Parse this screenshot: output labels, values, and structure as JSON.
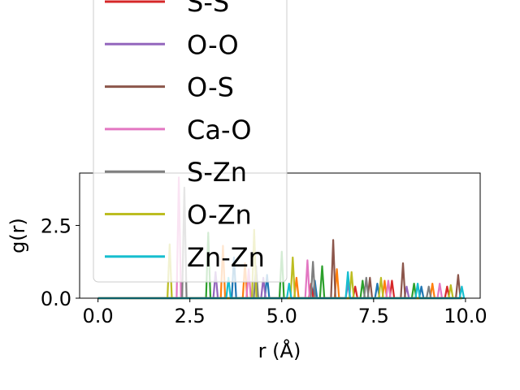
{
  "chart_data": {
    "type": "line",
    "xlabel": "r (Å)",
    "ylabel": "g(r)",
    "xlim": [
      -0.5,
      10.4
    ],
    "ylim": [
      0,
      4.3
    ],
    "x_ticks": [
      "0.0",
      "2.5",
      "5.0",
      "7.5",
      "10.0"
    ],
    "y_ticks": [
      "0.0",
      "2.5"
    ],
    "grid": false,
    "legend_placement": "upper-left, overflowing above the axes",
    "series": [
      {
        "name": "",
        "color": "#1f77b4",
        "peaks": [
          [
            3.7,
            1.4
          ],
          [
            4.6,
            0.8
          ],
          [
            5.9,
            0.6
          ],
          [
            7.6,
            0.5
          ],
          [
            8.8,
            0.4
          ]
        ]
      },
      {
        "name": "",
        "color": "#ff7f0e",
        "peaks": [
          [
            3.4,
            1.8
          ],
          [
            4.0,
            1.2
          ],
          [
            5.4,
            0.7
          ],
          [
            6.5,
            1.0
          ],
          [
            7.8,
            0.6
          ],
          [
            9.1,
            0.5
          ]
        ]
      },
      {
        "name": "",
        "color": "#2ca02c",
        "peaks": [
          [
            3.0,
            2.25
          ],
          [
            5.0,
            1.6
          ],
          [
            6.1,
            1.1
          ],
          [
            7.2,
            0.6
          ],
          [
            8.6,
            0.5
          ]
        ]
      },
      {
        "name": "S-S",
        "color": "#d62728",
        "peaks": [
          [
            5.8,
            0.5
          ],
          [
            7.0,
            0.4
          ],
          [
            8.0,
            0.6
          ],
          [
            9.5,
            0.4
          ]
        ]
      },
      {
        "name": "O-O",
        "color": "#9467bd",
        "peaks": [
          [
            3.2,
            0.9
          ],
          [
            4.5,
            0.7
          ],
          [
            6.8,
            0.5
          ],
          [
            8.4,
            0.4
          ]
        ]
      },
      {
        "name": "O-S",
        "color": "#8c564b",
        "peaks": [
          [
            6.4,
            2.0
          ],
          [
            7.4,
            0.7
          ],
          [
            8.3,
            1.2
          ],
          [
            9.8,
            0.8
          ]
        ]
      },
      {
        "name": "Ca-O",
        "color": "#e377c2",
        "peaks": [
          [
            2.2,
            4.15
          ],
          [
            4.1,
            1.0
          ],
          [
            5.7,
            1.3
          ],
          [
            7.9,
            0.6
          ],
          [
            9.3,
            0.5
          ]
        ]
      },
      {
        "name": "S-Zn",
        "color": "#7f7f7f",
        "peaks": [
          [
            2.35,
            3.8
          ],
          [
            4.3,
            1.1
          ],
          [
            5.85,
            1.25
          ],
          [
            7.3,
            0.7
          ],
          [
            9.0,
            0.4
          ]
        ]
      },
      {
        "name": "O-Zn",
        "color": "#bcbd22",
        "peaks": [
          [
            1.95,
            1.85
          ],
          [
            4.25,
            2.35
          ],
          [
            5.3,
            1.4
          ],
          [
            6.9,
            0.9
          ],
          [
            7.7,
            0.7
          ],
          [
            9.6,
            0.45
          ]
        ]
      },
      {
        "name": "Zn-Zn",
        "color": "#17becf",
        "peaks": [
          [
            3.55,
            0.7
          ],
          [
            5.2,
            0.5
          ],
          [
            6.8,
            0.9
          ],
          [
            8.7,
            0.5
          ],
          [
            9.9,
            0.4
          ]
        ]
      }
    ]
  }
}
